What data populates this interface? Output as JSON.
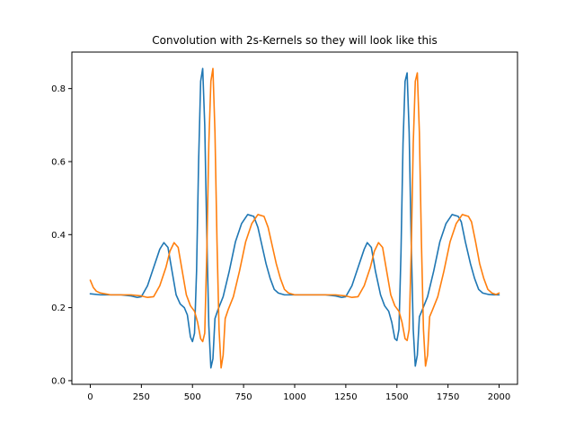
{
  "chart_data": {
    "type": "line",
    "title": "Convolution with 2s-Kernels so they will look like this",
    "xlabel": "",
    "ylabel": "",
    "xlim": [
      -90,
      2090
    ],
    "ylim": [
      -0.01,
      0.9
    ],
    "x_ticks": [
      0,
      250,
      500,
      750,
      1000,
      1250,
      1500,
      1750,
      2000
    ],
    "x_tick_labels": [
      "0",
      "250",
      "500",
      "750",
      "1000",
      "1250",
      "1500",
      "1750",
      "2000"
    ],
    "y_ticks": [
      0.0,
      0.2,
      0.4,
      0.6,
      0.8
    ],
    "y_tick_labels": [
      "0.0",
      "0.2",
      "0.4",
      "0.6",
      "0.8"
    ],
    "grid": false,
    "legend": "none",
    "series": [
      {
        "color": "#1f77b4",
        "x": [
          0,
          50,
          100,
          150,
          200,
          230,
          250,
          280,
          310,
          340,
          360,
          380,
          400,
          420,
          440,
          460,
          475,
          490,
          500,
          510,
          520,
          530,
          540,
          550,
          560,
          570,
          580,
          590,
          600,
          610,
          625,
          650,
          680,
          710,
          740,
          770,
          800,
          820,
          840,
          860,
          880,
          900,
          920,
          950,
          1000,
          1050,
          1100,
          1150,
          1200,
          1230,
          1250,
          1280,
          1310,
          1340,
          1355,
          1375,
          1395,
          1420,
          1440,
          1460,
          1475,
          1490,
          1500,
          1510,
          1520,
          1530,
          1540,
          1550,
          1560,
          1570,
          1580,
          1590,
          1600,
          1610,
          1625,
          1650,
          1680,
          1710,
          1740,
          1770,
          1800,
          1815,
          1835,
          1860,
          1880,
          1900,
          1920,
          1950,
          1975,
          2000
        ],
        "y": [
          0.238,
          0.235,
          0.235,
          0.235,
          0.232,
          0.228,
          0.23,
          0.26,
          0.31,
          0.36,
          0.378,
          0.365,
          0.3,
          0.235,
          0.21,
          0.2,
          0.18,
          0.12,
          0.107,
          0.13,
          0.3,
          0.6,
          0.82,
          0.855,
          0.7,
          0.4,
          0.15,
          0.035,
          0.06,
          0.17,
          0.195,
          0.23,
          0.3,
          0.38,
          0.43,
          0.455,
          0.45,
          0.42,
          0.37,
          0.32,
          0.28,
          0.25,
          0.24,
          0.235,
          0.235,
          0.235,
          0.235,
          0.235,
          0.232,
          0.228,
          0.23,
          0.26,
          0.31,
          0.36,
          0.378,
          0.365,
          0.3,
          0.235,
          0.205,
          0.19,
          0.16,
          0.115,
          0.11,
          0.14,
          0.35,
          0.65,
          0.82,
          0.843,
          0.68,
          0.38,
          0.14,
          0.04,
          0.07,
          0.175,
          0.195,
          0.23,
          0.3,
          0.38,
          0.43,
          0.455,
          0.45,
          0.435,
          0.38,
          0.32,
          0.28,
          0.25,
          0.24,
          0.236,
          0.235,
          0.235
        ]
      },
      {
        "color": "#ff7f0e",
        "x": [
          0,
          15,
          30,
          50,
          100,
          150,
          200,
          250,
          280,
          310,
          340,
          370,
          390,
          410,
          430,
          450,
          470,
          490,
          510,
          525,
          540,
          550,
          560,
          570,
          580,
          590,
          600,
          610,
          620,
          630,
          640,
          650,
          660,
          675,
          700,
          730,
          760,
          790,
          820,
          850,
          870,
          890,
          910,
          930,
          950,
          970,
          1000,
          1050,
          1100,
          1150,
          1200,
          1250,
          1280,
          1310,
          1340,
          1370,
          1390,
          1410,
          1430,
          1450,
          1470,
          1490,
          1510,
          1525,
          1540,
          1550,
          1560,
          1570,
          1580,
          1590,
          1600,
          1610,
          1620,
          1630,
          1640,
          1650,
          1660,
          1675,
          1700,
          1730,
          1760,
          1790,
          1820,
          1850,
          1865,
          1885,
          1905,
          1925,
          1945,
          1965,
          1985,
          2000
        ],
        "y": [
          0.275,
          0.255,
          0.245,
          0.24,
          0.235,
          0.235,
          0.235,
          0.232,
          0.228,
          0.23,
          0.26,
          0.31,
          0.355,
          0.378,
          0.365,
          0.3,
          0.235,
          0.205,
          0.19,
          0.16,
          0.115,
          0.107,
          0.13,
          0.35,
          0.65,
          0.82,
          0.855,
          0.68,
          0.38,
          0.14,
          0.035,
          0.07,
          0.17,
          0.195,
          0.23,
          0.3,
          0.38,
          0.43,
          0.455,
          0.45,
          0.42,
          0.37,
          0.32,
          0.28,
          0.25,
          0.24,
          0.235,
          0.235,
          0.235,
          0.235,
          0.235,
          0.232,
          0.228,
          0.23,
          0.26,
          0.31,
          0.355,
          0.378,
          0.365,
          0.3,
          0.235,
          0.205,
          0.19,
          0.16,
          0.115,
          0.11,
          0.14,
          0.35,
          0.65,
          0.82,
          0.843,
          0.68,
          0.38,
          0.14,
          0.04,
          0.07,
          0.175,
          0.195,
          0.23,
          0.3,
          0.38,
          0.43,
          0.455,
          0.45,
          0.435,
          0.38,
          0.32,
          0.28,
          0.25,
          0.24,
          0.236,
          0.24
        ]
      }
    ]
  }
}
